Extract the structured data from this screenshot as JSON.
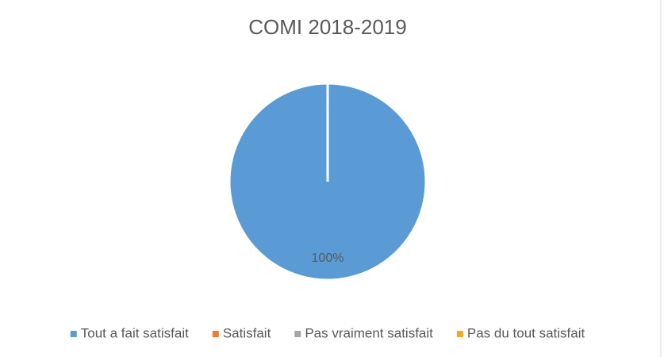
{
  "chart_data": {
    "type": "pie",
    "title": "COMI 2018-2019",
    "categories": [
      "Tout a fait satisfait",
      "Satisfait",
      "Pas vraiment satisfait",
      "Pas du tout satisfait"
    ],
    "values": [
      100,
      0,
      0,
      0
    ],
    "value_labels": [
      "100%",
      null,
      null,
      null
    ],
    "colors": [
      "#5b9bd5",
      "#ed7d31",
      "#a5a5a5",
      "#f5a623"
    ],
    "legend": "bottom"
  }
}
